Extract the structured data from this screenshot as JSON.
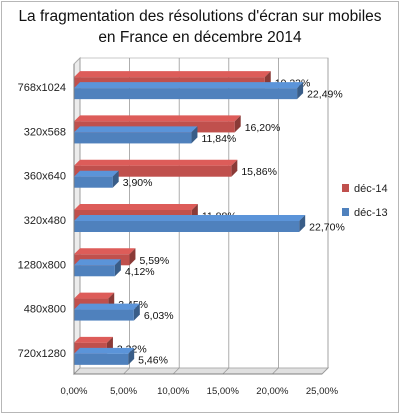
{
  "chart_data": {
    "type": "bar",
    "orientation": "horizontal",
    "title_lines": [
      "La fragmentation  des résolutions d'écran sur mobiles",
      "en France en décembre  2014"
    ],
    "categories": [
      "768x1024",
      "320x568",
      "360x640",
      "320x480",
      "1280x800",
      "480x800",
      "720x1280"
    ],
    "series": [
      {
        "name": "déc-14",
        "color": "#c0504d",
        "values": [
          19.23,
          16.2,
          15.86,
          11.88,
          5.59,
          3.45,
          3.32
        ],
        "labels": [
          "19,23%",
          "16,20%",
          "15,86%",
          "11,88%",
          "5,59%",
          "3,45%",
          "3,32%"
        ]
      },
      {
        "name": "déc-13",
        "color": "#4f81bd",
        "values": [
          22.49,
          11.84,
          3.9,
          22.7,
          4.12,
          6.03,
          5.46
        ],
        "labels": [
          "22,49%",
          "11,84%",
          "3,90%",
          "22,70%",
          "4,12%",
          "6,03%",
          "5,46%"
        ]
      }
    ],
    "xlim": [
      0,
      25
    ],
    "xticks": [
      "0,00%",
      "5,00%",
      "10,00%",
      "15,00%",
      "20,00%",
      "25,00%"
    ],
    "grid": true,
    "legend_position": "right",
    "style": "3d"
  }
}
